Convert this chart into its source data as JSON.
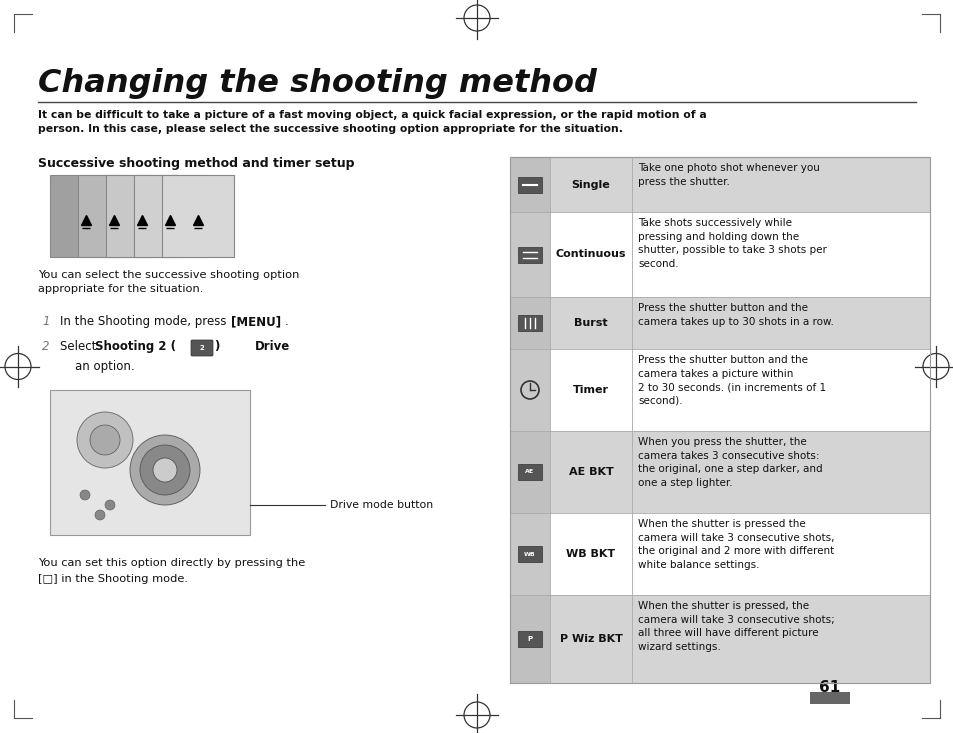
{
  "title": "Changing the shooting method",
  "intro_text": "It can be difficult to take a picture of a fast moving object, a quick facial expression, or the rapid motion of a\nperson. In this case, please select the successive shooting option appropriate for the situation.",
  "section_header": "Successive shooting method and timer setup",
  "body_text1": "You can select the successive shooting option\nappropriate for the situation.",
  "step1_normal": "In the Shooting mode, press ",
  "step1_bold": "[MENU]",
  "step1_end": ".",
  "step2_normal1": "Select ",
  "step2_bold1": "Shooting 2 (",
  "step2_bold2": ")     ",
  "step2_bold3": "Drive",
  "step2_sub": "an option.",
  "drive_label": "Drive mode button",
  "footer_line1": "You can set this option directly by pressing the",
  "footer_line2": "[□] in the Shooting mode.",
  "page_number": "61",
  "table_rows": [
    {
      "icon": "single",
      "label": "Single",
      "description": "Take one photo shot whenever you\npress the shutter.",
      "bg": "#d4d4d4"
    },
    {
      "icon": "continuous",
      "label": "Continuous",
      "description": "Take shots successively while\npressing and holding down the\nshutter, possible to take 3 shots per\nsecond.",
      "bg": "#ffffff"
    },
    {
      "icon": "burst",
      "label": "Burst",
      "description": "Press the shutter button and the\ncamera takes up to 30 shots in a row.",
      "bg": "#d4d4d4"
    },
    {
      "icon": "timer",
      "label": "Timer",
      "description": "Press the shutter button and the\ncamera takes a picture within\n2 to 30 seconds. (in increments of 1\nsecond).",
      "bg": "#ffffff"
    },
    {
      "icon": "aebkt",
      "label": "AE BKT",
      "description": "When you press the shutter, the\ncamera takes 3 consecutive shots:\nthe original, one a step darker, and\none a step lighter.",
      "bg": "#d4d4d4"
    },
    {
      "icon": "wbbkt",
      "label": "WB BKT",
      "description": "When the shutter is pressed the\ncamera will take 3 consecutive shots,\nthe original and 2 more with different\nwhite balance settings.",
      "bg": "#ffffff"
    },
    {
      "icon": "pwiz",
      "label": "P Wiz BKT",
      "description": "When the shutter is pressed, the\ncamera will take 3 consecutive shots;\nall three will have different picture\nwizard settings.",
      "bg": "#d4d4d4"
    }
  ],
  "bg_color": "#ffffff",
  "text_color": "#111111",
  "title_color": "#111111"
}
